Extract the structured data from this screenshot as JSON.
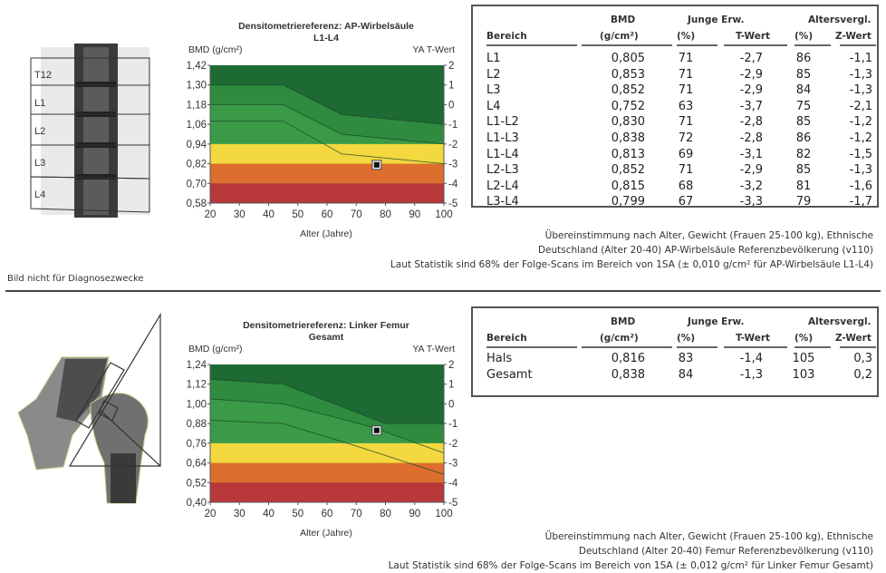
{
  "spine": {
    "image_labels": [
      "T12",
      "L1",
      "L2",
      "L3",
      "L4"
    ],
    "chart": {
      "title": "Densitometriereferenz: AP-Wirbelsäule",
      "subtitle": "L1-L4",
      "ylabel": "BMD (g/cm²)",
      "y2label": "YA T-Wert",
      "xlabel": "Alter (Jahre)"
    },
    "table": {
      "headers": {
        "bmd_top": "BMD",
        "junge": "Junge Erw.",
        "alters": "Altersvergl.",
        "bereich": "Bereich",
        "bmd_unit": "(g/cm²)",
        "pct1": "(%)",
        "twert": "T-Wert",
        "pct2": "(%)",
        "zwert": "Z-Wert"
      },
      "rows": [
        [
          "L1",
          "0,805",
          "71",
          "-2,7",
          "86",
          "-1,1"
        ],
        [
          "L2",
          "0,853",
          "71",
          "-2,9",
          "85",
          "-1,3"
        ],
        [
          "L3",
          "0,852",
          "71",
          "-2,9",
          "84",
          "-1,3"
        ],
        [
          "L4",
          "0,752",
          "63",
          "-3,7",
          "75",
          "-2,1"
        ],
        [
          "L1-L2",
          "0,830",
          "71",
          "-2,8",
          "85",
          "-1,2"
        ],
        [
          "L1-L3",
          "0,838",
          "72",
          "-2,8",
          "86",
          "-1,2"
        ],
        [
          "L1-L4",
          "0,813",
          "69",
          "-3,1",
          "82",
          "-1,5"
        ],
        [
          "L2-L3",
          "0,852",
          "71",
          "-2,9",
          "85",
          "-1,3"
        ],
        [
          "L2-L4",
          "0,815",
          "68",
          "-3,2",
          "81",
          "-1,6"
        ],
        [
          "L3-L4",
          "0,799",
          "67",
          "-3,3",
          "79",
          "-1,7"
        ]
      ]
    },
    "footnotes": [
      "Übereinstimmung nach Alter, Gewicht (Frauen 25-100 kg), Ethnische",
      "Deutschland (Alter 20-40) AP-Wirbelsäule Referenzbevölkerung (v110)",
      "Laut Statistik sind 68% der Folge-Scans im Bereich von 1SA (± 0,010 g/cm² für AP-Wirbelsäule L1-L4)"
    ],
    "disclaimer": "Bild nicht für Diagnosezwecke"
  },
  "femur": {
    "chart": {
      "title": "Densitometriereferenz: Linker Femur",
      "subtitle": "Gesamt",
      "ylabel": "BMD (g/cm²)",
      "y2label": "YA T-Wert",
      "xlabel": "Alter (Jahre)"
    },
    "table": {
      "headers": {
        "bmd_top": "BMD",
        "junge": "Junge Erw.",
        "alters": "Altersvergl.",
        "bereich": "Bereich",
        "bmd_unit": "(g/cm²)",
        "pct1": "(%)",
        "twert": "T-Wert",
        "pct2": "(%)",
        "zwert": "Z-Wert"
      },
      "rows": [
        [
          "Hals",
          "0,816",
          "83",
          "-1,4",
          "105",
          "0,3"
        ],
        [
          "Gesamt",
          "0,838",
          "84",
          "-1,3",
          "103",
          "0,2"
        ]
      ]
    },
    "footnotes": [
      "Übereinstimmung nach Alter, Gewicht (Frauen 25-100 kg), Ethnische",
      "Deutschland (Alter 20-40) Femur Referenzbevölkerung (v110)",
      "Laut Statistik sind 68% der Folge-Scans im Bereich von 1SA (± 0,012 g/cm² für Linker Femur Gesamt)"
    ]
  },
  "chart_data": [
    {
      "type": "area",
      "title": "Densitometriereferenz: AP-Wirbelsäule",
      "subtitle": "L1-L4",
      "xlabel": "Alter (Jahre)",
      "ylabel": "BMD (g/cm²)",
      "y2label": "YA T-Wert",
      "xlim": [
        20,
        100
      ],
      "ylim": [
        0.58,
        1.42
      ],
      "x_ticks": [
        "20",
        "30",
        "40",
        "50",
        "60",
        "70",
        "80",
        "90",
        "100"
      ],
      "y_ticks": [
        "1,42",
        "1,30",
        "1,18",
        "1,06",
        "0,94",
        "0,82",
        "0,70",
        "0,58"
      ],
      "y2_ticks": [
        "2",
        "1",
        "0",
        "-1",
        "-2",
        "-3",
        "-4",
        "-5"
      ],
      "bands": [
        {
          "from": 0.58,
          "to": 0.7,
          "color": "#b8373a"
        },
        {
          "from": 0.7,
          "to": 0.82,
          "color": "#dd6e2e"
        },
        {
          "from": 0.82,
          "to": 0.94,
          "color": "#f3d93f"
        }
      ],
      "green_dark": "#1d6a34",
      "green_mid": "#2f8c3f",
      "green_light": "#3a9a47",
      "upper_curve": [
        [
          20,
          1.3
        ],
        [
          45,
          1.3
        ],
        [
          65,
          1.12
        ],
        [
          100,
          1.06
        ]
      ],
      "mid_curve": [
        [
          20,
          1.18
        ],
        [
          45,
          1.18
        ],
        [
          65,
          1.0
        ],
        [
          100,
          0.94
        ]
      ],
      "lower_curve": [
        [
          20,
          1.08
        ],
        [
          45,
          1.08
        ],
        [
          65,
          0.88
        ],
        [
          100,
          0.82
        ]
      ],
      "point": {
        "age": 77,
        "bmd": 0.813
      }
    },
    {
      "type": "area",
      "title": "Densitometriereferenz: Linker Femur",
      "subtitle": "Gesamt",
      "xlabel": "Alter (Jahre)",
      "ylabel": "BMD (g/cm²)",
      "y2label": "YA T-Wert",
      "xlim": [
        20,
        100
      ],
      "ylim": [
        0.4,
        1.24
      ],
      "x_ticks": [
        "20",
        "30",
        "40",
        "50",
        "60",
        "70",
        "80",
        "90",
        "100"
      ],
      "y_ticks": [
        "1,24",
        "1,12",
        "1,00",
        "0,88",
        "0,76",
        "0,64",
        "0,52",
        "0,40"
      ],
      "y2_ticks": [
        "2",
        "1",
        "0",
        "-1",
        "-2",
        "-3",
        "-4",
        "-5"
      ],
      "bands": [
        {
          "from": 0.4,
          "to": 0.52,
          "color": "#b8373a"
        },
        {
          "from": 0.52,
          "to": 0.64,
          "color": "#dd6e2e"
        },
        {
          "from": 0.64,
          "to": 0.76,
          "color": "#f3d93f"
        }
      ],
      "green_dark": "#1d6a34",
      "green_mid": "#2f8c3f",
      "green_light": "#3a9a47",
      "upper_curve": [
        [
          20,
          1.15
        ],
        [
          45,
          1.12
        ],
        [
          80,
          0.88
        ],
        [
          100,
          0.88
        ]
      ],
      "mid_curve": [
        [
          20,
          1.03
        ],
        [
          45,
          1.0
        ],
        [
          75,
          0.86
        ],
        [
          100,
          0.7
        ]
      ],
      "lower_curve": [
        [
          20,
          0.9
        ],
        [
          45,
          0.88
        ],
        [
          67,
          0.76
        ],
        [
          100,
          0.57
        ]
      ],
      "point": {
        "age": 77,
        "bmd": 0.838
      }
    }
  ]
}
